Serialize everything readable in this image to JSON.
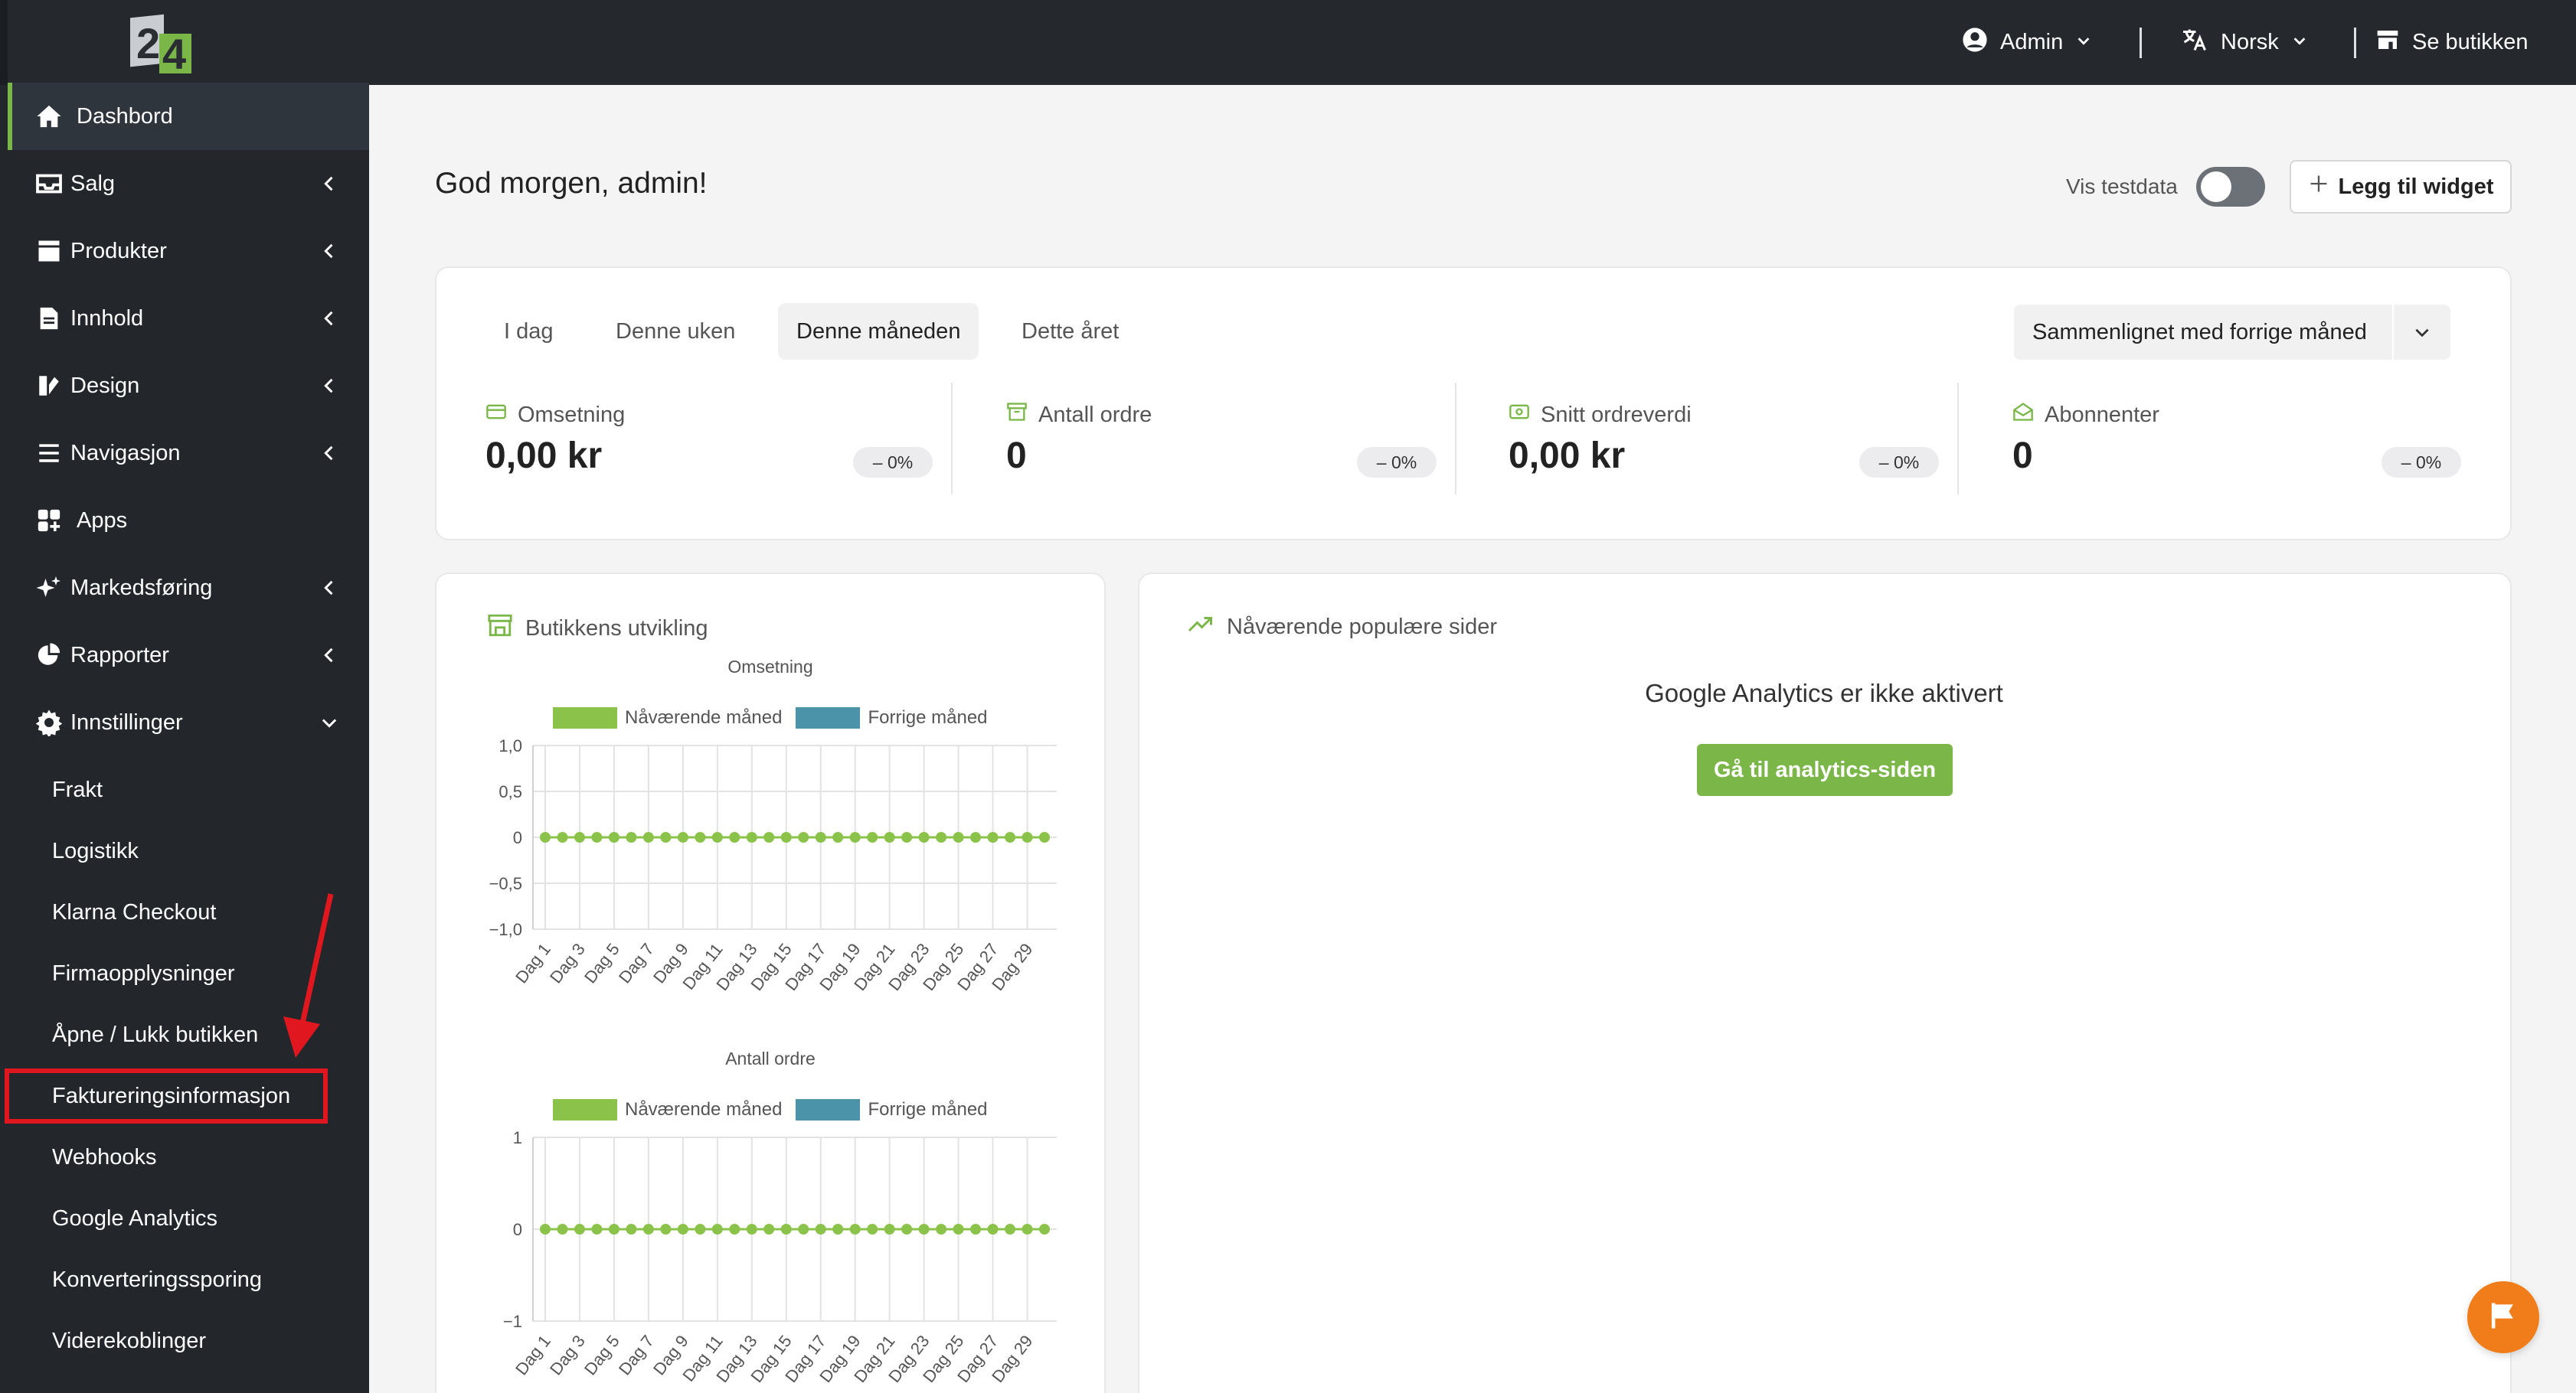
{
  "colors": {
    "accent": "#7ab648",
    "topbar": "#25292e",
    "sidebar": "#23272c",
    "current_series": "#8bc34a",
    "previous_series": "#4a93a8",
    "highlight": "#e0171e",
    "chat": "#f07d1a"
  },
  "topbar": {
    "admin_label": "Admin",
    "language_label": "Norsk",
    "store_label": "Se butikken",
    "logo_text_top": "2",
    "logo_text_bottom": "4"
  },
  "sidebar": {
    "items": [
      {
        "label": "Dashbord",
        "icon": "home-icon",
        "active": true,
        "chevron": false
      },
      {
        "label": "Salg",
        "icon": "inbox-icon",
        "chevron": true
      },
      {
        "label": "Produkter",
        "icon": "box-icon",
        "chevron": true
      },
      {
        "label": "Innhold",
        "icon": "file-icon",
        "chevron": true
      },
      {
        "label": "Design",
        "icon": "brush-icon",
        "chevron": true
      },
      {
        "label": "Navigasjon",
        "icon": "menu-icon",
        "chevron": true
      },
      {
        "label": "Apps",
        "icon": "apps-icon",
        "chevron": false
      },
      {
        "label": "Markedsføring",
        "icon": "sparkle-icon",
        "chevron": true
      },
      {
        "label": "Rapporter",
        "icon": "pie-chart-icon",
        "chevron": true
      },
      {
        "label": "Innstillinger",
        "icon": "gear-icon",
        "chevron": true,
        "expanded": true
      }
    ],
    "subitems": [
      "Frakt",
      "Logistikk",
      "Klarna Checkout",
      "Firmaopplysninger",
      "Åpne / Lukk butikken",
      "Faktureringsinformasjon",
      "Webhooks",
      "Google Analytics",
      "Konverteringssporing",
      "Viderekoblinger"
    ]
  },
  "header": {
    "greeting": "God morgen, admin!",
    "test_data_label": "Vis testdata",
    "test_data_enabled": false,
    "add_widget_label": "Legg til widget"
  },
  "period": {
    "tabs": [
      "I dag",
      "Denne uken",
      "Denne måneden",
      "Dette året"
    ],
    "selected": "Denne måneden",
    "compare_label": "Sammenlignet med forrige måned"
  },
  "metrics": [
    {
      "label": "Omsetning",
      "value": "0,00 kr",
      "change": "0%",
      "icon": "money-icon"
    },
    {
      "label": "Antall ordre",
      "value": "0",
      "change": "0%",
      "icon": "archive-icon"
    },
    {
      "label": "Snitt ordreverdi",
      "value": "0,00 kr",
      "change": "0%",
      "icon": "cash-icon"
    },
    {
      "label": "Abonnenter",
      "value": "0",
      "change": "0%",
      "icon": "mail-icon"
    }
  ],
  "store_panel": {
    "title": "Butikkens utvikling",
    "icon": "store-icon"
  },
  "popular_panel": {
    "title": "Nåværende populære sider",
    "icon": "trend-up-icon",
    "message": "Google Analytics er ikke aktivert",
    "button_label": "Gå til analytics-siden"
  },
  "chart_data": [
    {
      "type": "line",
      "title": "Omsetning",
      "legend": [
        "Nåværende måned",
        "Forrige måned"
      ],
      "x": [
        "Dag 1",
        "Dag 2",
        "Dag 3",
        "Dag 4",
        "Dag 5",
        "Dag 6",
        "Dag 7",
        "Dag 8",
        "Dag 9",
        "Dag 10",
        "Dag 11",
        "Dag 12",
        "Dag 13",
        "Dag 14",
        "Dag 15",
        "Dag 16",
        "Dag 17",
        "Dag 18",
        "Dag 19",
        "Dag 20",
        "Dag 21",
        "Dag 22",
        "Dag 23",
        "Dag 24",
        "Dag 25",
        "Dag 26",
        "Dag 27",
        "Dag 28",
        "Dag 29",
        "Dag 30"
      ],
      "x_tick_labels": [
        "Dag 1",
        "Dag 3",
        "Dag 5",
        "Dag 7",
        "Dag 9",
        "Dag 11",
        "Dag 13",
        "Dag 15",
        "Dag 17",
        "Dag 19",
        "Dag 21",
        "Dag 23",
        "Dag 25",
        "Dag 27",
        "Dag 29"
      ],
      "y_tick_labels": [
        "1,0",
        "0,5",
        "0",
        "−0,5",
        "−1,0"
      ],
      "y_ticks": [
        1.0,
        0.5,
        0,
        -0.5,
        -1.0
      ],
      "ylim": [
        -1.0,
        1.0
      ],
      "grid": true,
      "legend_position": "top",
      "series": [
        {
          "name": "Nåværende måned",
          "values": [
            0,
            0,
            0,
            0,
            0,
            0,
            0,
            0,
            0,
            0,
            0,
            0,
            0,
            0,
            0,
            0,
            0,
            0,
            0,
            0,
            0,
            0,
            0,
            0,
            0,
            0,
            0,
            0,
            0,
            0
          ]
        }
      ]
    },
    {
      "type": "line",
      "title": "Antall ordre",
      "legend": [
        "Nåværende måned",
        "Forrige måned"
      ],
      "x": [
        "Dag 1",
        "Dag 2",
        "Dag 3",
        "Dag 4",
        "Dag 5",
        "Dag 6",
        "Dag 7",
        "Dag 8",
        "Dag 9",
        "Dag 10",
        "Dag 11",
        "Dag 12",
        "Dag 13",
        "Dag 14",
        "Dag 15",
        "Dag 16",
        "Dag 17",
        "Dag 18",
        "Dag 19",
        "Dag 20",
        "Dag 21",
        "Dag 22",
        "Dag 23",
        "Dag 24",
        "Dag 25",
        "Dag 26",
        "Dag 27",
        "Dag 28",
        "Dag 29",
        "Dag 30"
      ],
      "x_tick_labels": [
        "Dag 1",
        "Dag 3",
        "Dag 5",
        "Dag 7",
        "Dag 9",
        "Dag 11",
        "Dag 13",
        "Dag 15",
        "Dag 17",
        "Dag 19",
        "Dag 21",
        "Dag 23",
        "Dag 25",
        "Dag 27",
        "Dag 29"
      ],
      "y_tick_labels": [
        "1",
        "0",
        "−1"
      ],
      "y_ticks": [
        1,
        0,
        -1
      ],
      "ylim": [
        -1,
        1
      ],
      "grid": true,
      "legend_position": "top",
      "series": [
        {
          "name": "Nåværende måned",
          "values": [
            0,
            0,
            0,
            0,
            0,
            0,
            0,
            0,
            0,
            0,
            0,
            0,
            0,
            0,
            0,
            0,
            0,
            0,
            0,
            0,
            0,
            0,
            0,
            0,
            0,
            0,
            0,
            0,
            0,
            0
          ]
        }
      ]
    }
  ]
}
